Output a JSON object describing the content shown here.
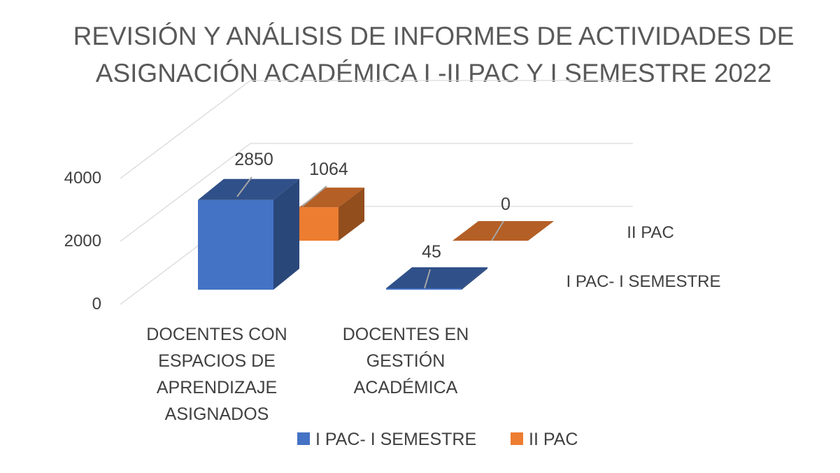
{
  "chart_data": {
    "type": "bar",
    "title_lines": [
      "REVISIÓN Y ANÁLISIS DE INFORMES DE ACTIVIDADES DE",
      "ASIGNACIÓN ACADÉMICA I -II PAC Y I SEMESTRE 2022"
    ],
    "categories": [
      [
        "DOCENTES CON",
        "ESPACIOS DE",
        "APRENDIZAJE",
        "ASIGNADOS"
      ],
      [
        "DOCENTES EN",
        "GESTIÓN",
        "ACADÉMICA"
      ]
    ],
    "series": [
      {
        "name": "I PAC- I SEMESTRE",
        "values": [
          2850,
          45
        ],
        "color": "#4472C4"
      },
      {
        "name": "II PAC",
        "values": [
          1064,
          0
        ],
        "color": "#ED7D31"
      }
    ],
    "yticks": [
      "0",
      "2000",
      "4000"
    ],
    "ylim": [
      0,
      4000
    ],
    "grid": true,
    "legend": "bottom"
  }
}
